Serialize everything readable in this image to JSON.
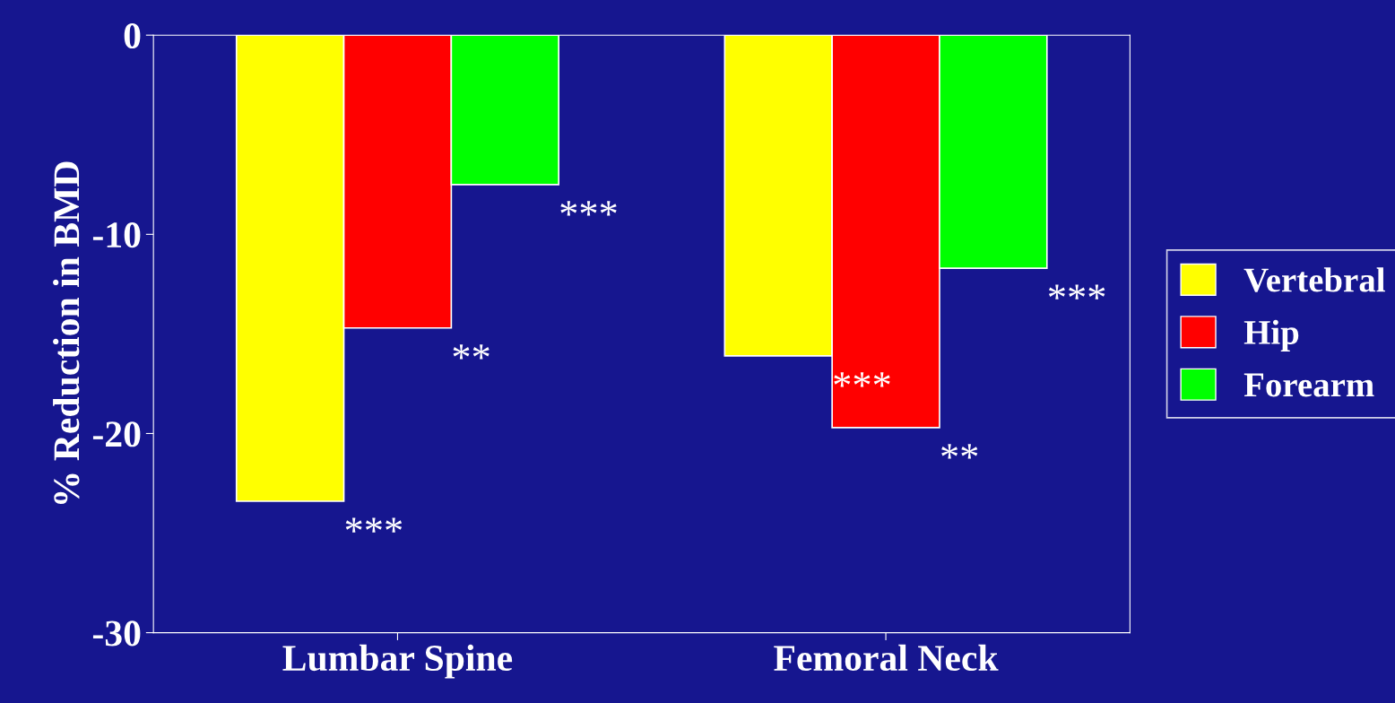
{
  "chart_data": {
    "type": "bar",
    "ylabel": "% Reduction in BMD",
    "categories": [
      "Lumbar Spine",
      "Femoral Neck"
    ],
    "series": [
      {
        "name": "Vertebral",
        "color": "#ffff00",
        "values": [
          -23.4,
          -16.1
        ]
      },
      {
        "name": "Hip",
        "color": "#ff0000",
        "values": [
          -14.7,
          -19.7
        ]
      },
      {
        "name": "Forearm",
        "color": "#00ff00",
        "values": [
          -7.5,
          -11.7
        ]
      }
    ],
    "ylim": [
      -30,
      0
    ],
    "yticks": [
      -30,
      -20,
      -10,
      0
    ],
    "grid": false,
    "legend": "right",
    "annotations": [
      "***",
      "**",
      "***",
      "***",
      "**",
      "***"
    ]
  }
}
